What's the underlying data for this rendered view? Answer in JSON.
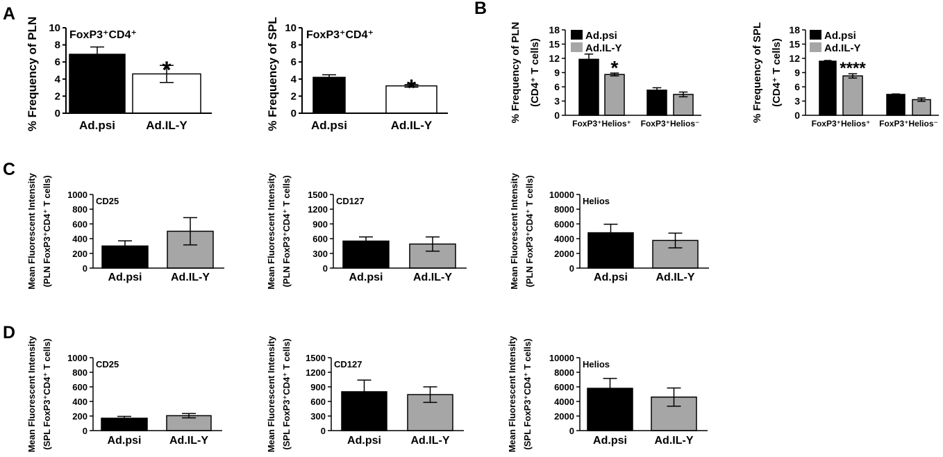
{
  "colors": {
    "black": "#000000",
    "gray": "#a6a6a6",
    "white": "#ffffff"
  },
  "panel_labels": [
    "A",
    "B",
    "C",
    "D"
  ],
  "chart_data": [
    {
      "type": "bar",
      "panel": "A",
      "title": "FoxP3⁺CD4⁺",
      "ylabel": "% Frequency of PLN",
      "categories": [
        "Ad.psi",
        "Ad.IL-Y"
      ],
      "values": [
        6.9,
        4.6
      ],
      "errors": [
        0.85,
        1.0
      ],
      "bar_fills": [
        "#000000",
        "#ffffff"
      ],
      "significance": [
        "",
        "*"
      ],
      "ylim": [
        0,
        10
      ],
      "yticks": [
        "0",
        "2",
        "4",
        "6",
        "8",
        "10"
      ]
    },
    {
      "type": "bar",
      "panel": "A",
      "title": "FoxP3⁺CD4⁺",
      "ylabel": "% Frequency of SPL",
      "categories": [
        "Ad.psi",
        "Ad.IL-Y"
      ],
      "values": [
        4.2,
        3.2
      ],
      "errors": [
        0.3,
        0.15
      ],
      "bar_fills": [
        "#000000",
        "#ffffff"
      ],
      "significance": [
        "",
        "*"
      ],
      "ylim": [
        0,
        10
      ],
      "yticks": [
        "0",
        "2",
        "4",
        "6",
        "8",
        "10"
      ]
    },
    {
      "type": "bar",
      "panel": "B",
      "ylabel": "% Frequency of PLN",
      "ylabel2": "(CD4⁺ T cells)",
      "categories": [
        "FoxP3⁺Helios⁺",
        "FoxP3⁺Helios⁻"
      ],
      "series": [
        {
          "name": "Ad.psi",
          "values": [
            11.8,
            5.3
          ],
          "errors": [
            1.1,
            0.5
          ]
        },
        {
          "name": "Ad.IL-Y",
          "values": [
            8.6,
            4.4
          ],
          "errors": [
            0.3,
            0.5
          ]
        }
      ],
      "significance": [
        "*",
        ""
      ],
      "ylim": [
        0,
        18
      ],
      "yticks": [
        "0",
        "3",
        "6",
        "9",
        "12",
        "15",
        "18"
      ]
    },
    {
      "type": "bar",
      "panel": "B",
      "ylabel": "% Frequency of SPL",
      "ylabel2": "(CD4⁺ T cells)",
      "categories": [
        "FoxP3⁺Helios⁺",
        "FoxP3⁺Helios⁻"
      ],
      "series": [
        {
          "name": "Ad.psi",
          "values": [
            11.4,
            4.4
          ],
          "errors": [
            0.15,
            0.1
          ]
        },
        {
          "name": "Ad.IL-Y",
          "values": [
            8.3,
            3.3
          ],
          "errors": [
            0.45,
            0.35
          ]
        }
      ],
      "significance": [
        "****",
        ""
      ],
      "ylim": [
        0,
        18
      ],
      "yticks": [
        "0",
        "3",
        "6",
        "9",
        "12",
        "15",
        "18"
      ]
    },
    {
      "type": "bar",
      "panel": "C",
      "title": "CD25",
      "ylabel": "Mean Fluorescent Intensity",
      "ylabel2": "(PLN FoxP3⁺CD4⁺ T cells)",
      "categories": [
        "Ad.psi",
        "Ad.IL-Y"
      ],
      "values": [
        300,
        500
      ],
      "errors": [
        70,
        185
      ],
      "bar_fills": [
        "#000000",
        "#a6a6a6"
      ],
      "ylim": [
        0,
        1000
      ],
      "yticks": [
        "0",
        "200",
        "400",
        "600",
        "800",
        "1000"
      ]
    },
    {
      "type": "bar",
      "panel": "C",
      "title": "CD127",
      "ylabel": "Mean Fluorescent Intensity",
      "ylabel2": "(PLN FoxP3⁺CD4⁺ T cells)",
      "categories": [
        "Ad.psi",
        "Ad.IL-Y"
      ],
      "values": [
        550,
        490
      ],
      "errors": [
        85,
        145
      ],
      "bar_fills": [
        "#000000",
        "#a6a6a6"
      ],
      "ylim": [
        0,
        1500
      ],
      "yticks": [
        "0",
        "300",
        "600",
        "900",
        "1200",
        "1500"
      ]
    },
    {
      "type": "bar",
      "panel": "C",
      "title": "Helios",
      "ylabel": "Mean Fluorescent Intensity",
      "ylabel2": "(PLN FoxP3⁺CD4⁺ T cells)",
      "categories": [
        "Ad.psi",
        "Ad.IL-Y"
      ],
      "values": [
        4800,
        3750
      ],
      "errors": [
        1150,
        1000
      ],
      "bar_fills": [
        "#000000",
        "#a6a6a6"
      ],
      "ylim": [
        0,
        10000
      ],
      "yticks": [
        "0",
        "2000",
        "4000",
        "6000",
        "8000",
        "10000"
      ]
    },
    {
      "type": "bar",
      "panel": "D",
      "title": "CD25",
      "ylabel": "Mean Fluorescent Intensity",
      "ylabel2": "(SPL FoxP3⁺CD4⁺ T cells)",
      "categories": [
        "Ad.psi",
        "Ad.IL-Y"
      ],
      "values": [
        170,
        205
      ],
      "errors": [
        25,
        30
      ],
      "bar_fills": [
        "#000000",
        "#a6a6a6"
      ],
      "ylim": [
        0,
        1000
      ],
      "yticks": [
        "0",
        "200",
        "400",
        "600",
        "800",
        "1000"
      ]
    },
    {
      "type": "bar",
      "panel": "D",
      "title": "CD127",
      "ylabel": "Mean Fluorescent Intensity",
      "ylabel2": "(SPL FoxP3⁺CD4⁺ T cells)",
      "categories": [
        "Ad.psi",
        "Ad.IL-Y"
      ],
      "values": [
        800,
        740
      ],
      "errors": [
        240,
        160
      ],
      "bar_fills": [
        "#000000",
        "#a6a6a6"
      ],
      "ylim": [
        0,
        1500
      ],
      "yticks": [
        "0",
        "300",
        "600",
        "900",
        "1200",
        "1500"
      ]
    },
    {
      "type": "bar",
      "panel": "D",
      "title": "Helios",
      "ylabel": "Mean Fluorescent Intensity",
      "ylabel2": "(SPL FoxP3⁺CD4⁺ T cells)",
      "categories": [
        "Ad.psi",
        "Ad.IL-Y"
      ],
      "values": [
        5800,
        4600
      ],
      "errors": [
        1350,
        1250
      ],
      "bar_fills": [
        "#000000",
        "#a6a6a6"
      ],
      "ylim": [
        0,
        10000
      ],
      "yticks": [
        "0",
        "2000",
        "4000",
        "6000",
        "8000",
        "10000"
      ]
    }
  ]
}
